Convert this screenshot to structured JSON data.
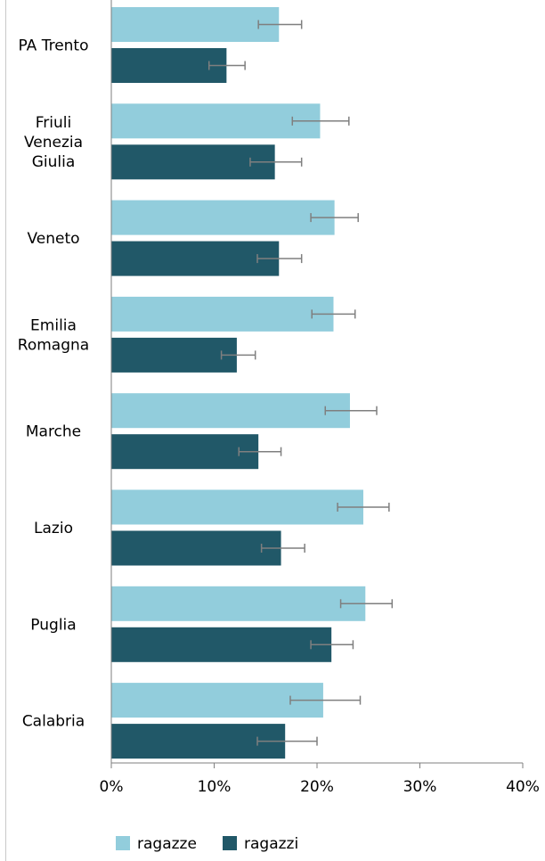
{
  "chart_data": {
    "type": "bar",
    "orientation": "horizontal",
    "categories": [
      [
        "PA Trento"
      ],
      [
        "Friuli",
        "Venezia",
        "Giulia"
      ],
      [
        "Veneto"
      ],
      [
        "Emilia",
        "Romagna"
      ],
      [
        "Marche"
      ],
      [
        "Lazio"
      ],
      [
        "Puglia"
      ],
      [
        "Calabria"
      ]
    ],
    "series": [
      {
        "name": "ragazze",
        "color": "#92cddc",
        "values": [
          16.3,
          20.3,
          21.7,
          21.6,
          23.2,
          24.5,
          24.7,
          20.6
        ],
        "error_low": [
          14.3,
          17.6,
          19.4,
          19.5,
          20.8,
          22.0,
          22.3,
          17.4
        ],
        "error_high": [
          18.5,
          23.1,
          24.0,
          23.7,
          25.8,
          27.0,
          27.3,
          24.2
        ]
      },
      {
        "name": "ragazzi",
        "color": "#215868",
        "values": [
          11.2,
          15.9,
          16.3,
          12.2,
          14.3,
          16.5,
          21.4,
          16.9
        ],
        "error_low": [
          9.5,
          13.5,
          14.2,
          10.7,
          12.4,
          14.6,
          19.4,
          14.2
        ],
        "error_high": [
          13.0,
          18.5,
          18.5,
          14.0,
          16.5,
          18.8,
          23.5,
          20.0
        ]
      }
    ],
    "xlim": [
      0,
      40
    ],
    "xticks": [
      "0%",
      "10%",
      "20%",
      "30%",
      "40%"
    ],
    "error_bar_color": "#7f7f7f",
    "grid": false,
    "legend_position": "bottom"
  }
}
